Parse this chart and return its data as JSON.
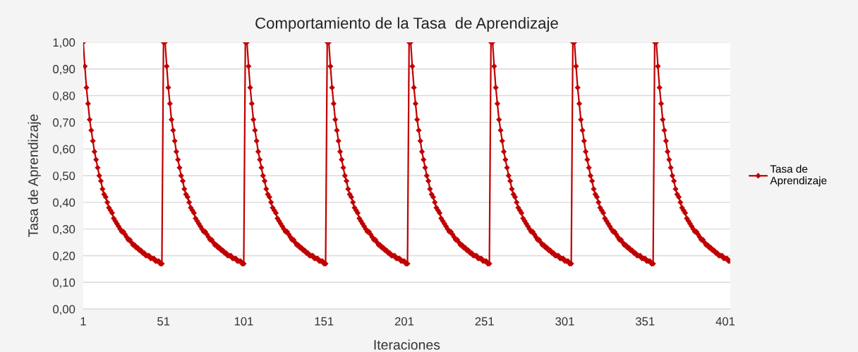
{
  "chart_data": {
    "type": "line",
    "title": "Comportamiento de la Tasa  de Aprendizaje",
    "xlabel": "Iteraciones",
    "ylabel": "Tasa de Aprendizaje",
    "xlim": [
      1,
      404
    ],
    "xticks": [
      1,
      51,
      101,
      151,
      201,
      251,
      301,
      351,
      401
    ],
    "ylim": [
      0,
      1
    ],
    "yticks": [
      {
        "value": 0,
        "label": "0,00"
      },
      {
        "value": 0.1,
        "label": "0,10"
      },
      {
        "value": 0.2,
        "label": "0,20"
      },
      {
        "value": 0.3,
        "label": "0,30"
      },
      {
        "value": 0.4,
        "label": "0,40"
      },
      {
        "value": 0.5,
        "label": "0,50"
      },
      {
        "value": 0.6,
        "label": "0,60"
      },
      {
        "value": 0.7,
        "label": "0,70"
      },
      {
        "value": 0.8,
        "label": "0,80"
      },
      {
        "value": 0.9,
        "label": "0,90"
      },
      {
        "value": 1,
        "label": "1,00"
      }
    ],
    "grid": "y",
    "legend": "right",
    "marker": "diamond",
    "line_style": "solid",
    "x": [
      1,
      2,
      3,
      4,
      5,
      6,
      7,
      8,
      9,
      10,
      11,
      12,
      13,
      14,
      15,
      16,
      17,
      18,
      19,
      20,
      21,
      22,
      23,
      24,
      25,
      26,
      27,
      28,
      29,
      30,
      31,
      32,
      33,
      34,
      35,
      36,
      37,
      38,
      39,
      40,
      41,
      42,
      43,
      44,
      45,
      46,
      47,
      48,
      49,
      50,
      51,
      52,
      53,
      54,
      55,
      56,
      57,
      58,
      59,
      60,
      61,
      62,
      63,
      64,
      65,
      66,
      67,
      68,
      69,
      70,
      71,
      72,
      73,
      74,
      75,
      76,
      77,
      78,
      79,
      80,
      81,
      82,
      83,
      84,
      85,
      86,
      87,
      88,
      89,
      90,
      91,
      92,
      93,
      94,
      95,
      96,
      97,
      98,
      99,
      100,
      101,
      102,
      103,
      104,
      105,
      106,
      107,
      108,
      109,
      110,
      111,
      112,
      113,
      114,
      115,
      116,
      117,
      118,
      119,
      120,
      121,
      122,
      123,
      124,
      125,
      126,
      127,
      128,
      129,
      130,
      131,
      132,
      133,
      134,
      135,
      136,
      137,
      138,
      139,
      140,
      141,
      142,
      143,
      144,
      145,
      146,
      147,
      148,
      149,
      150,
      151,
      152,
      153,
      154,
      155,
      156,
      157,
      158,
      159,
      160,
      161,
      162,
      163,
      164,
      165,
      166,
      167,
      168,
      169,
      170,
      171,
      172,
      173,
      174,
      175,
      176,
      177,
      178,
      179,
      180,
      181,
      182,
      183,
      184,
      185,
      186,
      187,
      188,
      189,
      190,
      191,
      192,
      193,
      194,
      195,
      196,
      197,
      198,
      199,
      200,
      201,
      202,
      203,
      204,
      205,
      206,
      207,
      208,
      209,
      210,
      211,
      212,
      213,
      214,
      215,
      216,
      217,
      218,
      219,
      220,
      221,
      222,
      223,
      224,
      225,
      226,
      227,
      228,
      229,
      230,
      231,
      232,
      233,
      234,
      235,
      236,
      237,
      238,
      239,
      240,
      241,
      242,
      243,
      244,
      245,
      246,
      247,
      248,
      249,
      250,
      251,
      252,
      253,
      254,
      255,
      256,
      257,
      258,
      259,
      260,
      261,
      262,
      263,
      264,
      265,
      266,
      267,
      268,
      269,
      270,
      271,
      272,
      273,
      274,
      275,
      276,
      277,
      278,
      279,
      280,
      281,
      282,
      283,
      284,
      285,
      286,
      287,
      288,
      289,
      290,
      291,
      292,
      293,
      294,
      295,
      296,
      297,
      298,
      299,
      300,
      301,
      302,
      303,
      304,
      305,
      306,
      307,
      308,
      309,
      310,
      311,
      312,
      313,
      314,
      315,
      316,
      317,
      318,
      319,
      320,
      321,
      322,
      323,
      324,
      325,
      326,
      327,
      328,
      329,
      330,
      331,
      332,
      333,
      334,
      335,
      336,
      337,
      338,
      339,
      340,
      341,
      342,
      343,
      344,
      345,
      346,
      347,
      348,
      349,
      350,
      351,
      352,
      353,
      354,
      355,
      356,
      357,
      358,
      359,
      360,
      361,
      362,
      363,
      364,
      365,
      366,
      367,
      368,
      369,
      370,
      371,
      372,
      373,
      374,
      375,
      376,
      377,
      378,
      379,
      380,
      381,
      382,
      383,
      384,
      385,
      386,
      387,
      388,
      389,
      390,
      391,
      392,
      393,
      394,
      395,
      396,
      397,
      398,
      399,
      400,
      401,
      402,
      403,
      404
    ],
    "series": [
      {
        "name": "Tasa de\nAprendizaje",
        "color": "#c00000",
        "values": [
          1.0,
          0.91,
          0.83,
          0.77,
          0.71,
          0.67,
          0.63,
          0.59,
          0.56,
          0.53,
          0.5,
          0.48,
          0.45,
          0.43,
          0.42,
          0.4,
          0.38,
          0.37,
          0.36,
          0.34,
          0.33,
          0.32,
          0.31,
          0.3,
          0.29,
          0.29,
          0.28,
          0.27,
          0.26,
          0.26,
          0.25,
          0.24,
          0.24,
          0.23,
          0.23,
          0.22,
          0.22,
          0.21,
          0.21,
          0.2,
          0.2,
          0.2,
          0.19,
          0.19,
          0.19,
          0.18,
          0.18,
          0.18,
          0.17,
          0.17,
          1.0,
          1.0,
          0.91,
          0.83,
          0.77,
          0.71,
          0.67,
          0.63,
          0.59,
          0.56,
          0.53,
          0.5,
          0.48,
          0.45,
          0.43,
          0.42,
          0.4,
          0.38,
          0.37,
          0.36,
          0.34,
          0.33,
          0.32,
          0.31,
          0.3,
          0.29,
          0.29,
          0.28,
          0.27,
          0.26,
          0.26,
          0.25,
          0.24,
          0.24,
          0.23,
          0.23,
          0.22,
          0.22,
          0.21,
          0.21,
          0.2,
          0.2,
          0.2,
          0.19,
          0.19,
          0.19,
          0.18,
          0.18,
          0.18,
          0.17,
          0.17,
          1.0,
          1.0,
          0.91,
          0.83,
          0.77,
          0.71,
          0.67,
          0.63,
          0.59,
          0.56,
          0.53,
          0.5,
          0.48,
          0.45,
          0.43,
          0.42,
          0.4,
          0.38,
          0.37,
          0.36,
          0.34,
          0.33,
          0.32,
          0.31,
          0.3,
          0.29,
          0.29,
          0.28,
          0.27,
          0.26,
          0.26,
          0.25,
          0.24,
          0.24,
          0.23,
          0.23,
          0.22,
          0.22,
          0.21,
          0.21,
          0.2,
          0.2,
          0.2,
          0.19,
          0.19,
          0.19,
          0.18,
          0.18,
          0.18,
          0.17,
          0.17,
          1.0,
          1.0,
          0.91,
          0.83,
          0.77,
          0.71,
          0.67,
          0.63,
          0.59,
          0.56,
          0.53,
          0.5,
          0.48,
          0.45,
          0.43,
          0.42,
          0.4,
          0.38,
          0.37,
          0.36,
          0.34,
          0.33,
          0.32,
          0.31,
          0.3,
          0.29,
          0.29,
          0.28,
          0.27,
          0.26,
          0.26,
          0.25,
          0.24,
          0.24,
          0.23,
          0.23,
          0.22,
          0.22,
          0.21,
          0.21,
          0.2,
          0.2,
          0.2,
          0.19,
          0.19,
          0.19,
          0.18,
          0.18,
          0.18,
          0.17,
          0.17,
          1.0,
          1.0,
          0.91,
          0.83,
          0.77,
          0.71,
          0.67,
          0.63,
          0.59,
          0.56,
          0.53,
          0.5,
          0.48,
          0.45,
          0.43,
          0.42,
          0.4,
          0.38,
          0.37,
          0.36,
          0.34,
          0.33,
          0.32,
          0.31,
          0.3,
          0.29,
          0.29,
          0.28,
          0.27,
          0.26,
          0.26,
          0.25,
          0.24,
          0.24,
          0.23,
          0.23,
          0.22,
          0.22,
          0.21,
          0.21,
          0.2,
          0.2,
          0.2,
          0.19,
          0.19,
          0.19,
          0.18,
          0.18,
          0.18,
          0.17,
          0.17,
          1.0,
          1.0,
          0.91,
          0.83,
          0.77,
          0.71,
          0.67,
          0.63,
          0.59,
          0.56,
          0.53,
          0.5,
          0.48,
          0.45,
          0.43,
          0.42,
          0.4,
          0.38,
          0.37,
          0.36,
          0.34,
          0.33,
          0.32,
          0.31,
          0.3,
          0.29,
          0.29,
          0.28,
          0.27,
          0.26,
          0.26,
          0.25,
          0.24,
          0.24,
          0.23,
          0.23,
          0.22,
          0.22,
          0.21,
          0.21,
          0.2,
          0.2,
          0.2,
          0.19,
          0.19,
          0.19,
          0.18,
          0.18,
          0.18,
          0.17,
          0.17,
          1.0,
          1.0,
          0.91,
          0.83,
          0.77,
          0.71,
          0.67,
          0.63,
          0.59,
          0.56,
          0.53,
          0.5,
          0.48,
          0.45,
          0.43,
          0.42,
          0.4,
          0.38,
          0.37,
          0.36,
          0.34,
          0.33,
          0.32,
          0.31,
          0.3,
          0.29,
          0.29,
          0.28,
          0.27,
          0.26,
          0.26,
          0.25,
          0.24,
          0.24,
          0.23,
          0.23,
          0.22,
          0.22,
          0.21,
          0.21,
          0.2,
          0.2,
          0.2,
          0.19,
          0.19,
          0.19,
          0.18,
          0.18,
          0.18,
          0.17,
          0.17,
          1.0,
          1.0,
          0.91,
          0.83,
          0.77,
          0.71,
          0.67,
          0.63,
          0.59,
          0.56,
          0.53,
          0.5,
          0.48,
          0.45,
          0.43,
          0.42,
          0.4,
          0.38,
          0.37,
          0.36,
          0.34,
          0.33,
          0.32,
          0.31,
          0.3,
          0.29,
          0.29,
          0.28,
          0.27,
          0.26,
          0.26,
          0.25,
          0.24,
          0.24,
          0.23,
          0.23,
          0.22,
          0.22,
          0.21,
          0.21,
          0.2,
          0.2,
          0.2,
          0.19,
          0.19,
          0.19,
          0.18,
          0.18
        ]
      }
    ]
  }
}
